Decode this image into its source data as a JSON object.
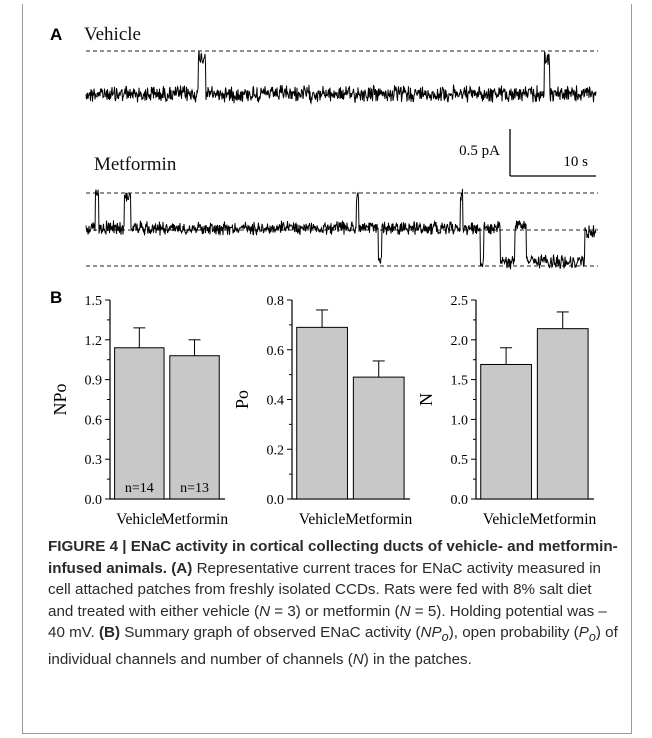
{
  "panelA": {
    "letter": "A",
    "vehicle_label": "Vehicle",
    "metformin_label": "Metformin",
    "scale_current": "0.5 pA",
    "scale_time": "10 s"
  },
  "panelB": {
    "letter": "B"
  },
  "chart_data": [
    {
      "type": "bar",
      "categories": [
        "Vehicle",
        "Metformin"
      ],
      "values": [
        1.14,
        1.08
      ],
      "errors": [
        0.15,
        0.12
      ],
      "ylabel": "NPo",
      "ylim": [
        0,
        1.5
      ],
      "yticks": [
        "0.0",
        "0.3",
        "0.6",
        "0.9",
        "1.2",
        "1.5"
      ],
      "bar_labels": [
        "n=14",
        "n=13"
      ],
      "bar_color": "#c8c8c8"
    },
    {
      "type": "bar",
      "categories": [
        "Vehicle",
        "Metformin"
      ],
      "values": [
        0.69,
        0.49
      ],
      "errors": [
        0.07,
        0.065
      ],
      "ylabel": "Po",
      "ylim": [
        0,
        0.8
      ],
      "yticks": [
        "0.0",
        "0.2",
        "0.4",
        "0.6",
        "0.8"
      ],
      "bar_labels": [
        "",
        ""
      ],
      "bar_color": "#c8c8c8"
    },
    {
      "type": "bar",
      "categories": [
        "Vehicle",
        "Metformin"
      ],
      "values": [
        1.69,
        2.14
      ],
      "errors": [
        0.21,
        0.21
      ],
      "ylabel": "N",
      "ylim": [
        0,
        2.5
      ],
      "yticks": [
        "0.0",
        "0.5",
        "1.0",
        "1.5",
        "2.0",
        "2.5"
      ],
      "bar_labels": [
        "",
        ""
      ],
      "bar_color": "#c8c8c8"
    }
  ],
  "caption": {
    "title": "FIGURE 4 | ENaC activity in cortical collecting ducts of vehicle- and metformin-infused animals.",
    "a_ref": "(A)",
    "a_text1": " Representative current traces for ENaC activity measured in cell attached patches from freshly isolated CCDs. Rats were fed with 8% salt diet and treated with either vehicle (",
    "n_sym": "N",
    "a_text2": " = 3) or metformin (",
    "a_text3": " = 5). Holding potential was –40 mV. ",
    "b_ref": "(B)",
    "b_text1": " Summary graph of observed ENaC activity (",
    "npo_sym": "NP",
    "po_sub": "o",
    "b_text2": "), open probability (",
    "po_sym": "P",
    "b_text3": ") of individual channels and number of channels (",
    "b_text4": ") in the patches."
  }
}
